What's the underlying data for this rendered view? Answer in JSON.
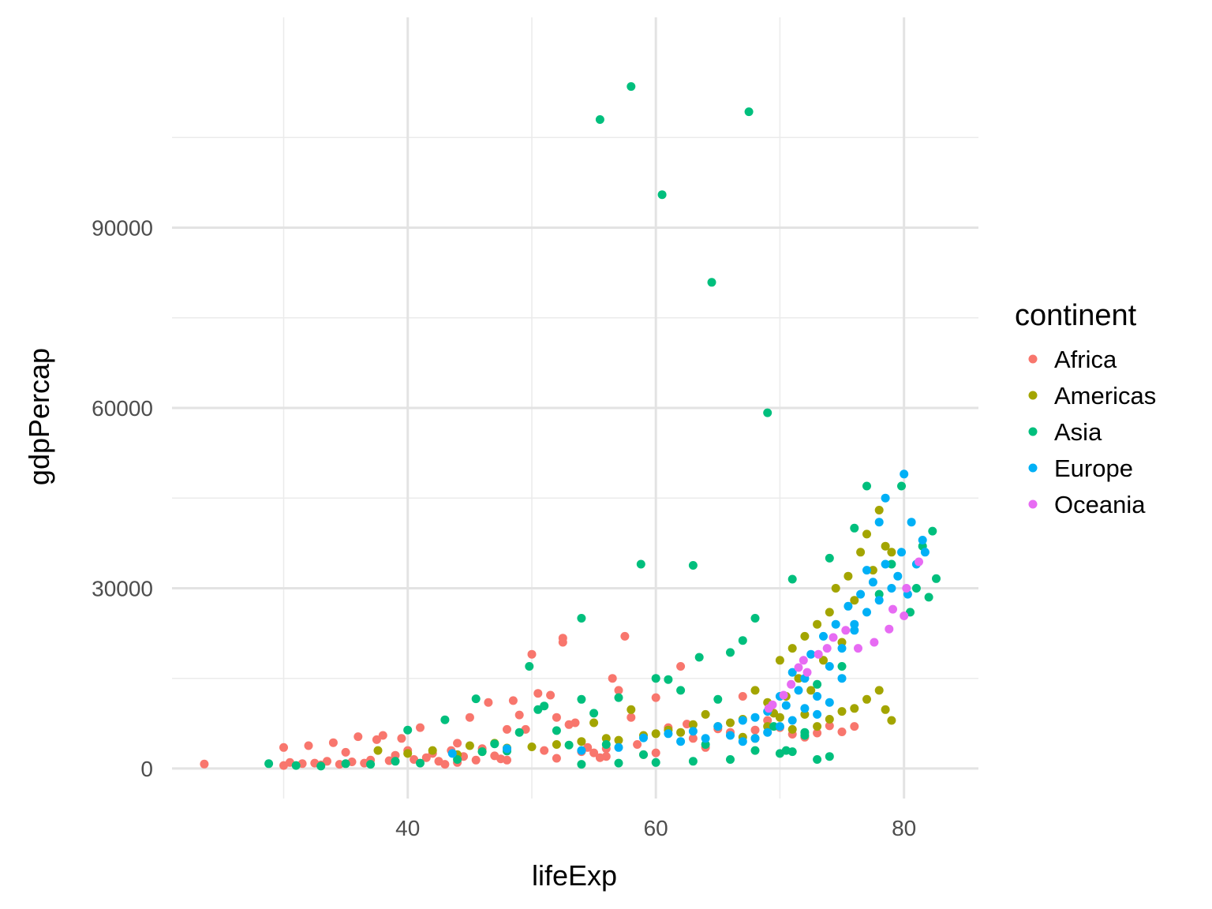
{
  "chart_data": {
    "type": "scatter",
    "title": "",
    "xlabel": "lifeExp",
    "ylabel": "gdpPercap",
    "xlim": [
      21,
      86
    ],
    "ylim": [
      -5000,
      125000
    ],
    "x_ticks": [
      40,
      60,
      80
    ],
    "y_ticks": [
      0,
      30000,
      60000,
      90000
    ],
    "x_tick_labels": [
      "40",
      "60",
      "80"
    ],
    "y_tick_labels": [
      "0",
      "30000",
      "60000",
      "90000"
    ],
    "grid": true,
    "legend_position": "right",
    "legend_title": "continent",
    "series": [
      {
        "name": "Africa",
        "color": "#F8766D",
        "points": [
          [
            23.6,
            737
          ],
          [
            30.0,
            3500
          ],
          [
            30.0,
            500
          ],
          [
            30.5,
            1000
          ],
          [
            31.5,
            800
          ],
          [
            32.0,
            3800
          ],
          [
            32.5,
            900
          ],
          [
            33.0,
            600
          ],
          [
            33.5,
            1200
          ],
          [
            34.0,
            4300
          ],
          [
            34.5,
            700
          ],
          [
            35.0,
            2700
          ],
          [
            35.5,
            1100
          ],
          [
            36.0,
            5300
          ],
          [
            36.5,
            900
          ],
          [
            37.0,
            1400
          ],
          [
            37.5,
            4800
          ],
          [
            38.0,
            5500
          ],
          [
            38.5,
            1300
          ],
          [
            39.0,
            2200
          ],
          [
            39.5,
            5000
          ],
          [
            40.0,
            3000
          ],
          [
            40.5,
            1500
          ],
          [
            41.0,
            6800
          ],
          [
            41.5,
            1800
          ],
          [
            42.0,
            2500
          ],
          [
            42.5,
            1200
          ],
          [
            43.0,
            700
          ],
          [
            43.5,
            3000
          ],
          [
            44.0,
            4200
          ],
          [
            44.5,
            2000
          ],
          [
            45.0,
            8500
          ],
          [
            45.5,
            1400
          ],
          [
            46.0,
            3300
          ],
          [
            46.5,
            11000
          ],
          [
            47.0,
            2100
          ],
          [
            47.5,
            1600
          ],
          [
            48.0,
            6500
          ],
          [
            48.5,
            11300
          ],
          [
            49.0,
            8900
          ],
          [
            49.5,
            6500
          ],
          [
            50.0,
            19000
          ],
          [
            50.5,
            12500
          ],
          [
            51.0,
            3000
          ],
          [
            51.5,
            12200
          ],
          [
            52.0,
            8500
          ],
          [
            52.5,
            21700
          ],
          [
            52.5,
            21000
          ],
          [
            53.0,
            7300
          ],
          [
            53.5,
            7600
          ],
          [
            54.0,
            2800
          ],
          [
            54.5,
            3500
          ],
          [
            55.0,
            2600
          ],
          [
            55.5,
            1800
          ],
          [
            56.0,
            3300
          ],
          [
            56.5,
            15000
          ],
          [
            57.0,
            13000
          ],
          [
            57.5,
            22000
          ],
          [
            58.0,
            8500
          ],
          [
            58.5,
            4000
          ],
          [
            59.0,
            2300
          ],
          [
            60.0,
            11800
          ],
          [
            61.0,
            6800
          ],
          [
            62.0,
            17000
          ],
          [
            62.5,
            7400
          ],
          [
            63.0,
            5000
          ],
          [
            64.0,
            3500
          ],
          [
            65.0,
            6600
          ],
          [
            66.0,
            6000
          ],
          [
            67.0,
            12000
          ],
          [
            68.0,
            6400
          ],
          [
            69.0,
            8000
          ],
          [
            70.0,
            6800
          ],
          [
            71.0,
            5700
          ],
          [
            72.0,
            5200
          ],
          [
            73.0,
            5900
          ],
          [
            74.0,
            7100
          ],
          [
            75.0,
            6100
          ],
          [
            76.0,
            7000
          ],
          [
            44.0,
            1000
          ],
          [
            48.0,
            1400
          ],
          [
            52.0,
            1700
          ],
          [
            56.0,
            2000
          ],
          [
            60.0,
            2600
          ]
        ]
      },
      {
        "name": "Americas",
        "color": "#A3A500",
        "points": [
          [
            37.6,
            3000
          ],
          [
            40.0,
            2500
          ],
          [
            42.0,
            3000
          ],
          [
            44.0,
            2300
          ],
          [
            45.0,
            3800
          ],
          [
            46.0,
            2800
          ],
          [
            47.0,
            4200
          ],
          [
            48.0,
            3400
          ],
          [
            50.0,
            3600
          ],
          [
            52.0,
            4000
          ],
          [
            54.0,
            4500
          ],
          [
            55.0,
            7600
          ],
          [
            56.0,
            5000
          ],
          [
            57.0,
            4700
          ],
          [
            58.0,
            9800
          ],
          [
            59.0,
            5500
          ],
          [
            60.0,
            5800
          ],
          [
            61.0,
            6400
          ],
          [
            62.0,
            6000
          ],
          [
            63.0,
            7300
          ],
          [
            64.0,
            9000
          ],
          [
            65.0,
            7000
          ],
          [
            66.0,
            7600
          ],
          [
            67.0,
            8200
          ],
          [
            68.0,
            13000
          ],
          [
            69.0,
            11000
          ],
          [
            69.5,
            9200
          ],
          [
            70.0,
            18000
          ],
          [
            70.5,
            12000
          ],
          [
            71.0,
            20000
          ],
          [
            71.5,
            15000
          ],
          [
            72.0,
            22000
          ],
          [
            72.5,
            13000
          ],
          [
            73.0,
            24000
          ],
          [
            73.5,
            18000
          ],
          [
            74.0,
            26000
          ],
          [
            74.5,
            30000
          ],
          [
            75.0,
            21000
          ],
          [
            75.5,
            32000
          ],
          [
            76.0,
            28000
          ],
          [
            76.5,
            36000
          ],
          [
            77.0,
            39000
          ],
          [
            77.5,
            33000
          ],
          [
            78.0,
            43000
          ],
          [
            78.5,
            37000
          ],
          [
            79.0,
            36000
          ],
          [
            78.0,
            13000
          ],
          [
            78.5,
            9800
          ],
          [
            79.0,
            8000
          ],
          [
            77.0,
            11500
          ],
          [
            76.0,
            10000
          ],
          [
            75.0,
            9500
          ],
          [
            74.0,
            8200
          ],
          [
            73.0,
            7000
          ],
          [
            72.0,
            9000
          ],
          [
            71.0,
            6500
          ],
          [
            70.0,
            8500
          ],
          [
            69.0,
            7000
          ],
          [
            68.0,
            5000
          ],
          [
            67.0,
            5200
          ]
        ]
      },
      {
        "name": "Asia",
        "color": "#00BF7D",
        "points": [
          [
            28.8,
            800
          ],
          [
            31.0,
            500
          ],
          [
            33.0,
            400
          ],
          [
            35.0,
            800
          ],
          [
            37.0,
            700
          ],
          [
            39.0,
            1200
          ],
          [
            40.0,
            6400
          ],
          [
            41.0,
            900
          ],
          [
            43.0,
            8100
          ],
          [
            44.0,
            1500
          ],
          [
            45.5,
            11600
          ],
          [
            46.0,
            2800
          ],
          [
            47.0,
            4100
          ],
          [
            48.0,
            2900
          ],
          [
            49.0,
            6000
          ],
          [
            49.8,
            17000
          ],
          [
            50.5,
            9800
          ],
          [
            51.0,
            10400
          ],
          [
            52.0,
            6300
          ],
          [
            53.0,
            3900
          ],
          [
            54.0,
            11500
          ],
          [
            54.0,
            25000
          ],
          [
            55.0,
            9200
          ],
          [
            55.5,
            108000
          ],
          [
            56.0,
            4000
          ],
          [
            57.0,
            11800
          ],
          [
            58.0,
            113500
          ],
          [
            58.8,
            34000
          ],
          [
            59.0,
            2300
          ],
          [
            60.0,
            15000
          ],
          [
            60.5,
            95500
          ],
          [
            61.0,
            14800
          ],
          [
            62.0,
            13000
          ],
          [
            63.0,
            33800
          ],
          [
            63.5,
            18500
          ],
          [
            64.0,
            4000
          ],
          [
            64.5,
            80900
          ],
          [
            65.0,
            11500
          ],
          [
            66.0,
            19300
          ],
          [
            67.0,
            21300
          ],
          [
            67.5,
            109300
          ],
          [
            68.0,
            25000
          ],
          [
            69.0,
            59200
          ],
          [
            69.5,
            7000
          ],
          [
            70.0,
            2500
          ],
          [
            70.5,
            3000
          ],
          [
            71.0,
            31500
          ],
          [
            72.0,
            5500
          ],
          [
            73.0,
            14000
          ],
          [
            74.0,
            35000
          ],
          [
            75.0,
            17000
          ],
          [
            76.0,
            40000
          ],
          [
            77.0,
            47000
          ],
          [
            78.0,
            29000
          ],
          [
            79.0,
            34000
          ],
          [
            79.8,
            47000
          ],
          [
            80.5,
            26000
          ],
          [
            81.0,
            30000
          ],
          [
            82.0,
            28500
          ],
          [
            82.3,
            39500
          ],
          [
            82.6,
            31600
          ],
          [
            81.5,
            37000
          ],
          [
            74.0,
            2000
          ],
          [
            73.0,
            1500
          ],
          [
            72.0,
            6000
          ],
          [
            71.0,
            2800
          ],
          [
            68.0,
            3000
          ],
          [
            66.0,
            1500
          ],
          [
            63.0,
            1200
          ],
          [
            60.0,
            1000
          ],
          [
            57.0,
            900
          ],
          [
            54.0,
            700
          ]
        ]
      },
      {
        "name": "Europe",
        "color": "#00B0F6",
        "points": [
          [
            43.6,
            2500
          ],
          [
            48.0,
            3300
          ],
          [
            54.0,
            3000
          ],
          [
            57.0,
            3500
          ],
          [
            59.0,
            5100
          ],
          [
            61.0,
            5800
          ],
          [
            62.0,
            4500
          ],
          [
            63.0,
            6200
          ],
          [
            64.0,
            5000
          ],
          [
            65.0,
            7000
          ],
          [
            66.0,
            5500
          ],
          [
            67.0,
            8000
          ],
          [
            68.0,
            8500
          ],
          [
            69.0,
            9500
          ],
          [
            70.0,
            12000
          ],
          [
            70.5,
            10500
          ],
          [
            71.0,
            16000
          ],
          [
            71.5,
            13000
          ],
          [
            72.0,
            15000
          ],
          [
            72.5,
            19000
          ],
          [
            73.0,
            12000
          ],
          [
            73.5,
            22000
          ],
          [
            74.0,
            17000
          ],
          [
            74.5,
            24000
          ],
          [
            75.0,
            20000
          ],
          [
            75.5,
            27000
          ],
          [
            76.0,
            23000
          ],
          [
            76.5,
            29000
          ],
          [
            77.0,
            26000
          ],
          [
            77.5,
            31000
          ],
          [
            78.0,
            28000
          ],
          [
            78.5,
            34000
          ],
          [
            79.0,
            30000
          ],
          [
            79.5,
            32000
          ],
          [
            79.8,
            36000
          ],
          [
            80.0,
            49000
          ],
          [
            80.3,
            29000
          ],
          [
            80.6,
            41000
          ],
          [
            81.0,
            34000
          ],
          [
            81.5,
            38000
          ],
          [
            81.7,
            36000
          ],
          [
            78.5,
            45000
          ],
          [
            78.0,
            41000
          ],
          [
            77.0,
            33000
          ],
          [
            76.0,
            24000
          ],
          [
            75.0,
            15000
          ],
          [
            74.0,
            11000
          ],
          [
            73.0,
            9000
          ],
          [
            72.0,
            10000
          ],
          [
            71.0,
            8000
          ],
          [
            70.0,
            7000
          ],
          [
            69.0,
            6000
          ],
          [
            68.0,
            5000
          ],
          [
            67.0,
            4500
          ]
        ]
      },
      {
        "name": "Oceania",
        "color": "#E76BF3",
        "points": [
          [
            69.1,
            10000
          ],
          [
            69.4,
            10600
          ],
          [
            70.3,
            12200
          ],
          [
            70.9,
            14000
          ],
          [
            71.5,
            16800
          ],
          [
            71.9,
            18000
          ],
          [
            72.2,
            16000
          ],
          [
            73.1,
            19000
          ],
          [
            73.8,
            20000
          ],
          [
            74.3,
            21800
          ],
          [
            75.3,
            23000
          ],
          [
            76.3,
            20000
          ],
          [
            77.6,
            21000
          ],
          [
            78.8,
            23200
          ],
          [
            80.0,
            25400
          ],
          [
            80.2,
            30000
          ],
          [
            81.2,
            34400
          ],
          [
            79.1,
            26500
          ]
        ]
      }
    ]
  }
}
